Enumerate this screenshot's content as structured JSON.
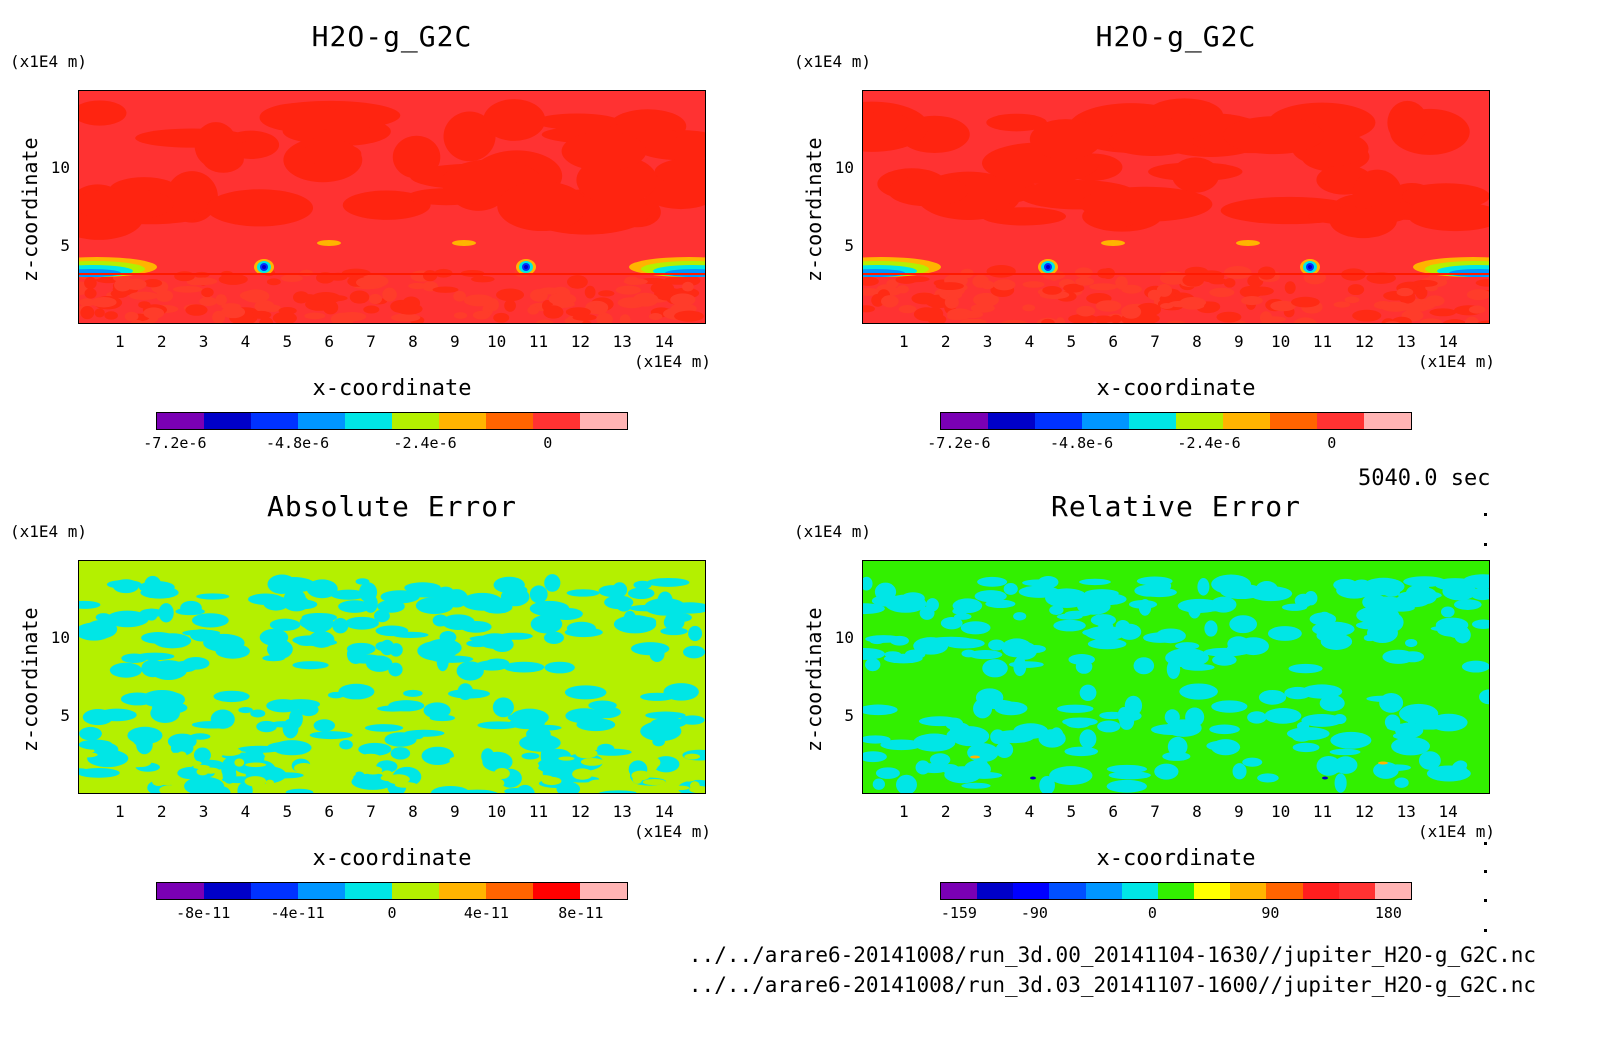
{
  "panels": [
    {
      "title": "H2O-g_G2C",
      "y_unit": "(x1E4 m)",
      "x_unit": "(x1E4 m)",
      "ylabel": "z-coordinate",
      "xlabel": "x-coordinate",
      "xticks": [
        "1",
        "2",
        "3",
        "4",
        "5",
        "6",
        "7",
        "8",
        "9",
        "10",
        "11",
        "12",
        "13",
        "14"
      ],
      "yticks": [
        "5",
        "10"
      ],
      "colorbar": {
        "colors": [
          "#7a00b4",
          "#0000c8",
          "#0032ff",
          "#0096ff",
          "#00e6e6",
          "#b4f000",
          "#ffb400",
          "#ff6400",
          "#ff3232",
          "#ffb4b4"
        ],
        "labels": [
          "-7.2e-6",
          "-4.8e-6",
          "-2.4e-6",
          "0"
        ]
      }
    },
    {
      "title": "H2O-g_G2C",
      "y_unit": "(x1E4 m)",
      "x_unit": "(x1E4 m)",
      "ylabel": "z-coordinate",
      "xlabel": "x-coordinate",
      "xticks": [
        "1",
        "2",
        "3",
        "4",
        "5",
        "6",
        "7",
        "8",
        "9",
        "10",
        "11",
        "12",
        "13",
        "14"
      ],
      "yticks": [
        "5",
        "10"
      ],
      "colorbar": {
        "colors": [
          "#7a00b4",
          "#0000c8",
          "#0032ff",
          "#0096ff",
          "#00e6e6",
          "#b4f000",
          "#ffb400",
          "#ff6400",
          "#ff3232",
          "#ffb4b4"
        ],
        "labels": [
          "-7.2e-6",
          "-4.8e-6",
          "-2.4e-6",
          "0"
        ]
      }
    },
    {
      "title": "Absolute Error",
      "y_unit": "(x1E4 m)",
      "x_unit": "(x1E4 m)",
      "ylabel": "z-coordinate",
      "xlabel": "x-coordinate",
      "xticks": [
        "1",
        "2",
        "3",
        "4",
        "5",
        "6",
        "7",
        "8",
        "9",
        "10",
        "11",
        "12",
        "13",
        "14"
      ],
      "yticks": [
        "5",
        "10"
      ],
      "colorbar": {
        "colors": [
          "#7a00b4",
          "#0000c8",
          "#0032ff",
          "#0096ff",
          "#00e6e6",
          "#b4f000",
          "#ffb400",
          "#ff6400",
          "#ff0000",
          "#ffb4b4"
        ],
        "labels": [
          "-8e-11",
          "-4e-11",
          "0",
          "4e-11",
          "8e-11"
        ]
      }
    },
    {
      "title": "Relative Error",
      "y_unit": "(x1E4 m)",
      "x_unit": "(x1E4 m)",
      "ylabel": "z-coordinate",
      "xlabel": "x-coordinate",
      "xticks": [
        "1",
        "2",
        "3",
        "4",
        "5",
        "6",
        "7",
        "8",
        "9",
        "10",
        "11",
        "12",
        "13",
        "14"
      ],
      "yticks": [
        "5",
        "10"
      ],
      "colorbar": {
        "colors": [
          "#7a00b4",
          "#0000c8",
          "#0000ff",
          "#0050ff",
          "#0096ff",
          "#00e6e6",
          "#32f000",
          "#ffff00",
          "#ffb400",
          "#ff6400",
          "#ff1e1e",
          "#ff3232",
          "#ffb4b4"
        ],
        "labels": [
          "-159",
          "-90",
          "0",
          "90",
          "180"
        ]
      }
    }
  ],
  "time_label": "5040.0 sec",
  "file_paths": [
    "../../arare6-20141008/run_3d.00_20141104-1630//jupiter_H2O-g_G2C.nc",
    "../../arare6-20141008/run_3d.03_20141107-1600//jupiter_H2O-g_G2C.nc"
  ],
  "chart_data": [
    {
      "type": "heatmap",
      "title": "H2O-g_G2C",
      "xlabel": "x-coordinate",
      "ylabel": "z-coordinate",
      "xunit": "(x1E4 m)",
      "yunit": "(x1E4 m)",
      "xlim": [
        0,
        15
      ],
      "ylim": [
        0,
        15
      ],
      "background_value": 0,
      "colorbar_range": [
        -8.4e-06,
        1.2e-06
      ],
      "features": [
        "red field ~0 above 3.5",
        "strong negative anomalies near x=4.5 and x=10.7 at z~3.5",
        "negative layer near x=0-2 and x=14-15 at z~3.5"
      ]
    },
    {
      "type": "heatmap",
      "title": "H2O-g_G2C",
      "xlabel": "x-coordinate",
      "ylabel": "z-coordinate",
      "xlim": [
        0,
        15
      ],
      "ylim": [
        0,
        15
      ],
      "background_value": 0,
      "colorbar_range": [
        -8.4e-06,
        1.2e-06
      ]
    },
    {
      "type": "heatmap",
      "title": "Absolute Error",
      "xlabel": "x-coordinate",
      "ylabel": "z-coordinate",
      "xlim": [
        0,
        15
      ],
      "ylim": [
        0,
        15
      ],
      "colorbar_range": [
        -1e-10,
        1e-10
      ],
      "dominant_values": [
        0,
        -2e-11
      ]
    },
    {
      "type": "heatmap",
      "title": "Relative Error",
      "xlabel": "x-coordinate",
      "ylabel": "z-coordinate",
      "xlim": [
        0,
        15
      ],
      "ylim": [
        0,
        15
      ],
      "colorbar_range": [
        -180,
        180
      ],
      "colorbar_labels": [
        "-159",
        "-90",
        "0",
        "90",
        "180"
      ],
      "dominant_values": [
        0,
        -30
      ]
    }
  ]
}
